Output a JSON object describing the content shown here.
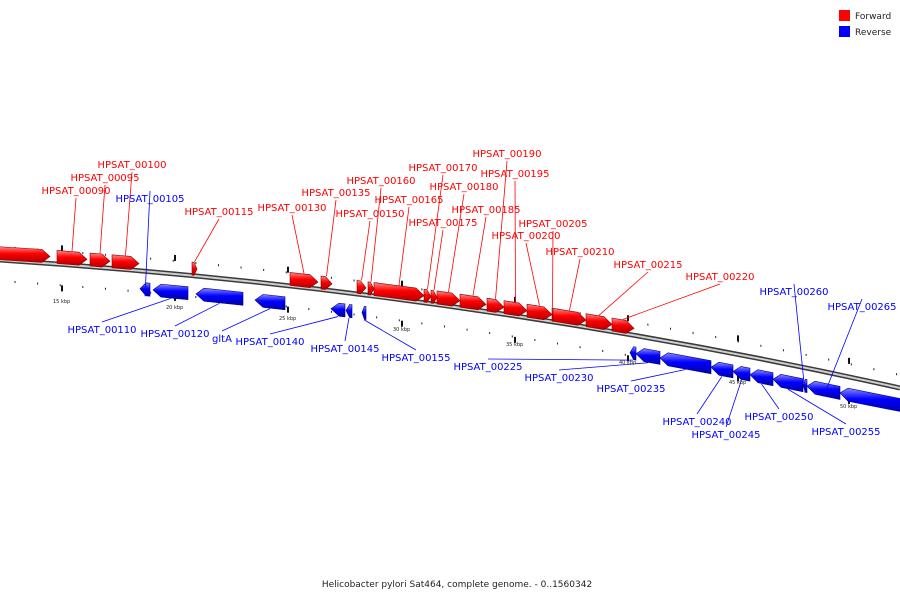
{
  "legend": {
    "forward_label": "Forward",
    "reverse_label": "Reverse",
    "forward_color": "#ff0000",
    "reverse_color": "#0000ff"
  },
  "caption": "Helicobacter pylori Sat464, complete genome. - 0..1560342",
  "axis": {
    "unit": "kbp",
    "tick_labels": [
      "15 kbp",
      "20 kbp",
      "25 kbp",
      "30 kbp",
      "35 kbp",
      "40 kbp",
      "45 kbp",
      "50 kbp"
    ]
  },
  "genes": [
    {
      "name": "HPSAT_00090",
      "strand": "forward"
    },
    {
      "name": "HPSAT_00095",
      "strand": "forward"
    },
    {
      "name": "HPSAT_00100",
      "strand": "forward"
    },
    {
      "name": "HPSAT_00105",
      "strand": "reverse"
    },
    {
      "name": "HPSAT_00110",
      "strand": "reverse"
    },
    {
      "name": "HPSAT_00115",
      "strand": "forward"
    },
    {
      "name": "HPSAT_00120",
      "strand": "reverse"
    },
    {
      "name": "gltA",
      "strand": "reverse"
    },
    {
      "name": "HPSAT_00130",
      "strand": "forward"
    },
    {
      "name": "HPSAT_00135",
      "strand": "forward"
    },
    {
      "name": "HPSAT_00140",
      "strand": "reverse"
    },
    {
      "name": "HPSAT_00145",
      "strand": "reverse"
    },
    {
      "name": "HPSAT_00150",
      "strand": "forward"
    },
    {
      "name": "HPSAT_00155",
      "strand": "reverse"
    },
    {
      "name": "HPSAT_00160",
      "strand": "forward"
    },
    {
      "name": "HPSAT_00165",
      "strand": "forward"
    },
    {
      "name": "HPSAT_00170",
      "strand": "forward"
    },
    {
      "name": "HPSAT_00175",
      "strand": "forward"
    },
    {
      "name": "HPSAT_00180",
      "strand": "forward"
    },
    {
      "name": "HPSAT_00185",
      "strand": "forward"
    },
    {
      "name": "HPSAT_00190",
      "strand": "forward"
    },
    {
      "name": "HPSAT_00195",
      "strand": "forward"
    },
    {
      "name": "HPSAT_00200",
      "strand": "forward"
    },
    {
      "name": "HPSAT_00205",
      "strand": "forward"
    },
    {
      "name": "HPSAT_00210",
      "strand": "forward"
    },
    {
      "name": "HPSAT_00215",
      "strand": "forward"
    },
    {
      "name": "HPSAT_00220",
      "strand": "forward"
    },
    {
      "name": "HPSAT_00225",
      "strand": "reverse"
    },
    {
      "name": "HPSAT_00230",
      "strand": "reverse"
    },
    {
      "name": "HPSAT_00235",
      "strand": "reverse"
    },
    {
      "name": "HPSAT_00240",
      "strand": "reverse"
    },
    {
      "name": "HPSAT_00245",
      "strand": "reverse"
    },
    {
      "name": "HPSAT_00250",
      "strand": "reverse"
    },
    {
      "name": "HPSAT_00255",
      "strand": "reverse"
    },
    {
      "name": "HPSAT_00260",
      "strand": "reverse"
    },
    {
      "name": "HPSAT_00265",
      "strand": "reverse"
    }
  ]
}
